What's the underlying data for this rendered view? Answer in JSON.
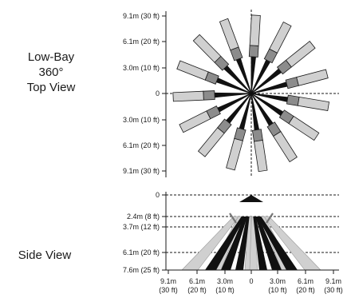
{
  "top_view": {
    "label_lines": [
      "Low-Bay",
      "360°",
      "Top View"
    ],
    "y_ticks": [
      "9.1m (30 ft)",
      "6.1m (20 ft)",
      "3.0m (10 ft)",
      "0",
      "3.0m (10 ft)",
      "6.1m (20 ft)",
      "9.1m (30 ft)"
    ]
  },
  "side_view": {
    "label": "Side View",
    "y_ticks": [
      "0",
      "2.4m (8 ft)",
      "3.7m (12 ft)",
      "6.1m (20 ft)",
      "7.6m (25 ft)"
    ],
    "x_ticks": [
      {
        "top": "9.1m",
        "bottom": "(30 ft)"
      },
      {
        "top": "6.1m",
        "bottom": "(20 ft)"
      },
      {
        "top": "3.0m",
        "bottom": "(10 ft)"
      },
      {
        "top": "0",
        "bottom": ""
      },
      {
        "top": "3.0m",
        "bottom": "(10 ft)"
      },
      {
        "top": "6.1m",
        "bottom": "(20 ft)"
      },
      {
        "top": "9.1m",
        "bottom": "(30 ft)"
      }
    ]
  },
  "colors": {
    "beam_light": "#d0d0d0",
    "beam_mid": "#8c8c8c",
    "beam_dark": "#111111",
    "line": "#1a1a1a"
  }
}
